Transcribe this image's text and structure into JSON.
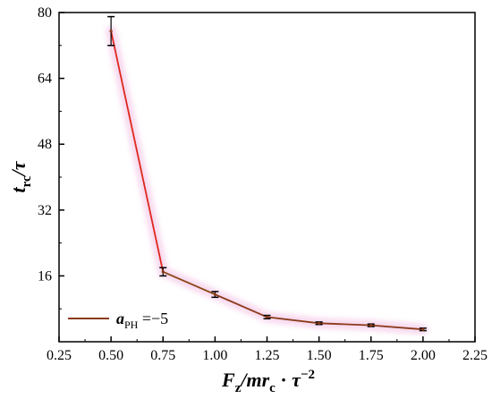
{
  "chart_data": {
    "type": "line",
    "xlabel": "F_z/mr_c · τ^{-2}",
    "ylabel": "t_rc/τ",
    "xlim": [
      0.25,
      2.25
    ],
    "ylim": [
      0,
      80
    ],
    "xticks": [
      "0.25",
      "0.50",
      "0.75",
      "1.00",
      "1.25",
      "1.50",
      "1.75",
      "2.00",
      "2.25"
    ],
    "yticks": [
      "16",
      "32",
      "48",
      "64",
      "80"
    ],
    "legend_position": "bottom-left",
    "series": [
      {
        "name": "a_PH = −5",
        "color": "#8B3A1A",
        "x": [
          0.5,
          0.75,
          1.0,
          1.25,
          1.5,
          1.75,
          2.0
        ],
        "y": [
          75.5,
          17.0,
          11.5,
          6.0,
          4.5,
          4.0,
          3.0
        ],
        "err": [
          3.5,
          1.0,
          0.7,
          0.4,
          0.3,
          0.3,
          0.3
        ]
      }
    ],
    "segment_colors": [
      "#E0281E",
      "#8B4513",
      "#8B3A1A",
      "#8B3A1A",
      "#8B3A1A",
      "#8B3A1A"
    ],
    "legend": {
      "symbol": "a",
      "subscript": "PH",
      "value": " =−5"
    }
  }
}
